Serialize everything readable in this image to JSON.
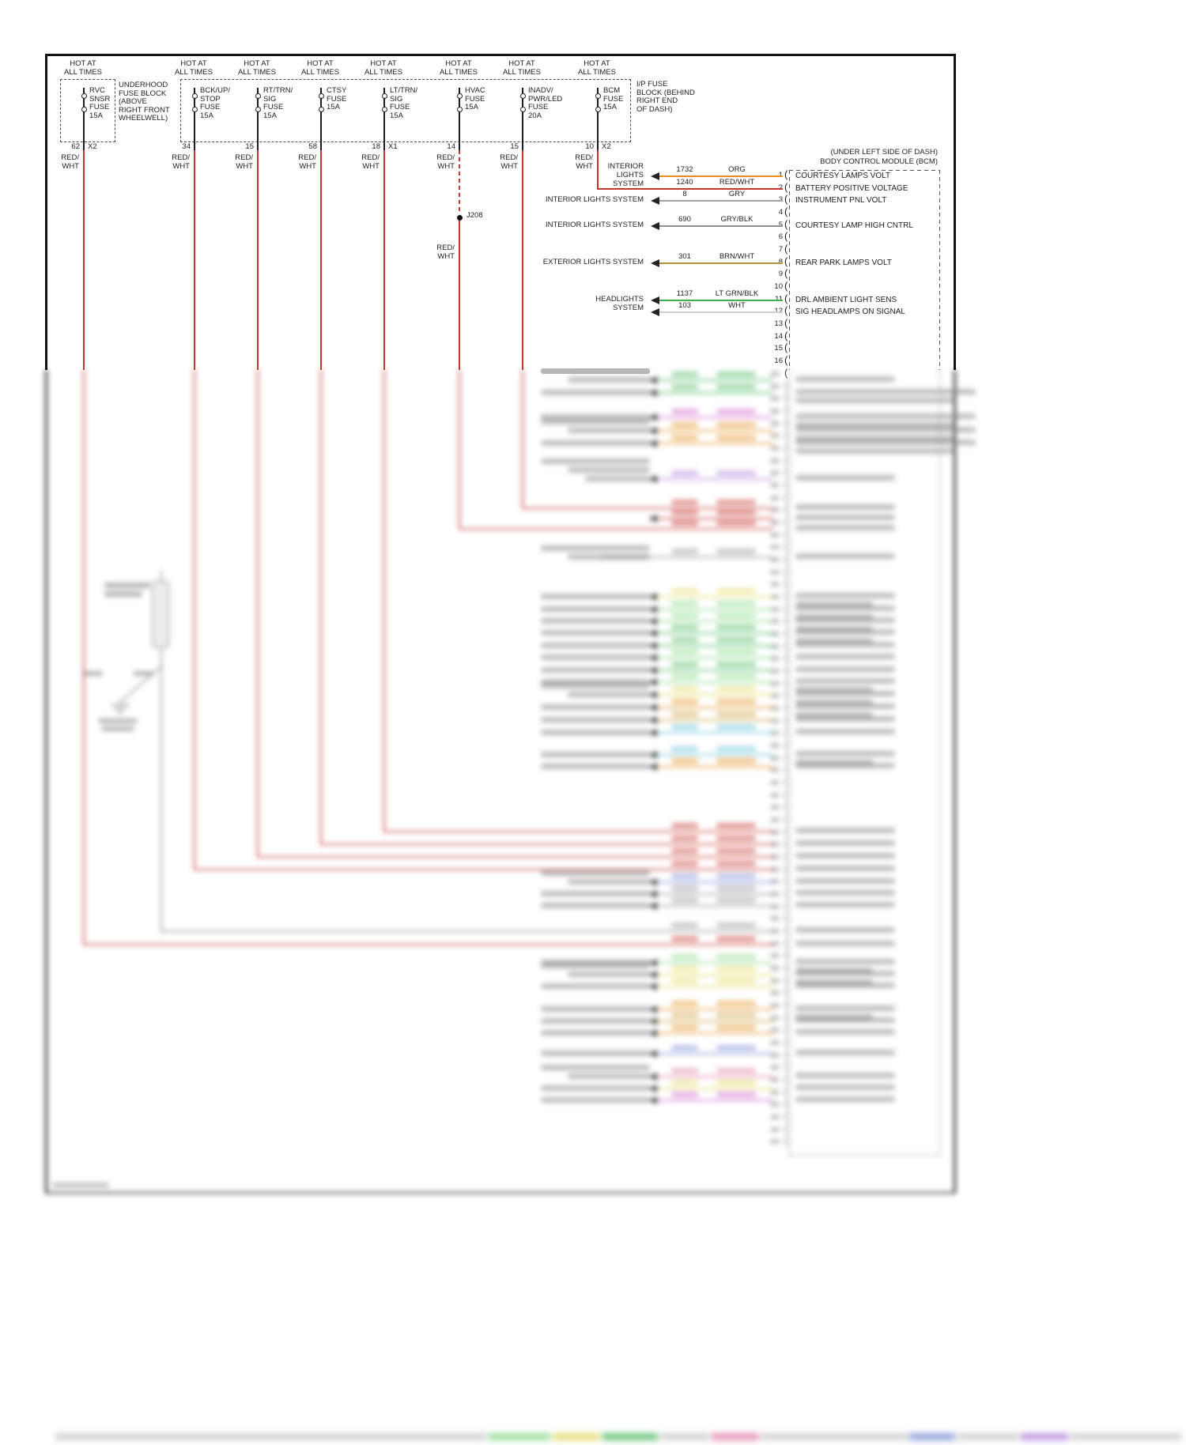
{
  "meta": {
    "note": "Automotive power-distribution wiring schematic; lower portion is blurred in the source image"
  },
  "hot_label": [
    "HOT AT",
    "ALL TIMES"
  ],
  "underhood_block_label": [
    "UNDERHOOD",
    "FUSE BLOCK",
    "(ABOVE",
    "RIGHT FRONT",
    "WHEELWELL)"
  ],
  "ip_block_label": [
    "I/P FUSE",
    "BLOCK (BEHIND",
    "RIGHT END",
    "OF DASH)"
  ],
  "wire_label_red": [
    "RED/",
    "WHT"
  ],
  "junction": "J208",
  "wire_color_red": "#c4352c",
  "fuses": [
    {
      "name_lines": [
        "RVC",
        "SNSR",
        "FUSE",
        "15A"
      ],
      "pin": "62",
      "conn": "X2"
    },
    {
      "name_lines": [
        "BCK/UP/",
        "STOP",
        "FUSE",
        "15A"
      ],
      "pin": "34",
      "conn": ""
    },
    {
      "name_lines": [
        "RT/TRN/",
        "SIG",
        "FUSE",
        "15A"
      ],
      "pin": "15",
      "conn": ""
    },
    {
      "name_lines": [
        "CTSY",
        "FUSE",
        "15A"
      ],
      "pin": "58",
      "conn": ""
    },
    {
      "name_lines": [
        "LT/TRN/",
        "SIG",
        "FUSE",
        "15A"
      ],
      "pin": "18",
      "conn": "X1"
    },
    {
      "name_lines": [
        "HVAC",
        "FUSE",
        "15A"
      ],
      "pin": "14",
      "conn": ""
    },
    {
      "name_lines": [
        "INADV/",
        "PWR/LED",
        "FUSE",
        "20A"
      ],
      "pin": "15",
      "conn": ""
    },
    {
      "name_lines": [
        "BCM",
        "FUSE",
        "15A"
      ],
      "pin": "10",
      "conn": "X2"
    }
  ],
  "bcm": {
    "location": "(UNDER LEFT SIDE OF DASH)",
    "title": "BODY CONTROL MODULE (BCM)",
    "pins": [
      {
        "n": "1",
        "circuit": "1732",
        "wire": "ORG",
        "color": "#e78c1d",
        "label": "COURTESY LAMPS VOLT",
        "src": [
          "INTERIOR",
          "LIGHTS",
          "SYSTEM"
        ],
        "arrow": true
      },
      {
        "n": "2",
        "circuit": "1240",
        "wire": "RED/WHT",
        "color": "#c4352c",
        "label": "BATTERY POSITIVE VOLTAGE",
        "from_fuse": 7
      },
      {
        "n": "3",
        "circuit": "8",
        "wire": "GRY",
        "color": "#a3a3a3",
        "label": "INSTRUMENT PNL VOLT",
        "src": [
          "INTERIOR LIGHTS SYSTEM"
        ],
        "arrow": true
      },
      {
        "n": "4"
      },
      {
        "n": "5",
        "circuit": "690",
        "wire": "GRY/BLK",
        "color": "#8e8e8e",
        "label": "COURTESY LAMP HIGH CNTRL",
        "src": [
          "INTERIOR LIGHTS SYSTEM"
        ],
        "arrow": true
      },
      {
        "n": "6"
      },
      {
        "n": "7"
      },
      {
        "n": "8",
        "circuit": "301",
        "wire": "BRN/WHT",
        "color": "#b3903c",
        "label": "REAR PARK LAMPS VOLT",
        "src": [
          "EXTERIOR LIGHTS SYSTEM"
        ],
        "arrow": true
      },
      {
        "n": "9"
      },
      {
        "n": "10"
      },
      {
        "n": "11",
        "circuit": "1137",
        "wire": "LT GRN/BLK",
        "color": "#44ad4f",
        "label": "DRL AMBIENT LIGHT SENS",
        "src": [
          "HEADLIGHTS",
          "SYSTEM"
        ],
        "src_span2": true,
        "arrow": true
      },
      {
        "n": "12",
        "circuit": "103",
        "wire": "WHT",
        "color": "#cfcfcf",
        "label": "SIG HEADLAMPS ON SIGNAL",
        "arrow": true
      },
      {
        "n": "13"
      },
      {
        "n": "14"
      },
      {
        "n": "15"
      },
      {
        "n": "16"
      }
    ]
  },
  "blurred_section": {
    "note": "Content below this line is illegible (blurred) in the source; only wire colors and layout are represented",
    "palette": {
      "g": "#58bd6c",
      "lg": "#8eda90",
      "y": "#e5dc6e",
      "o": "#e69a31",
      "t": "#cda74e",
      "c": "#6ec7d8",
      "p": "#e285ae",
      "m": "#d36fd0",
      "r": "#cc4a42",
      "b": "#8595d8",
      "v": "#b688dc",
      "gy": "#9c9c9c",
      "w2": "#cccccc"
    },
    "rows": [
      [
        481,
        "g",
        830,
        2,
        1,
        0
      ],
      [
        497,
        "g",
        830,
        1,
        2,
        1
      ],
      [
        528,
        "m",
        830,
        1,
        2,
        1
      ],
      [
        545,
        "o",
        830,
        2,
        2,
        1
      ],
      [
        561,
        "o",
        830,
        1,
        2,
        1
      ],
      [
        606,
        "v",
        830,
        3,
        1,
        0
      ],
      [
        643,
        "r",
        660,
        0,
        1,
        0
      ],
      [
        656,
        "r",
        830,
        0,
        1,
        0
      ],
      [
        669,
        "r",
        580,
        0,
        1,
        0
      ],
      [
        705,
        "gy",
        760,
        2,
        1,
        0
      ],
      [
        755,
        "y",
        830,
        1,
        2,
        0
      ],
      [
        771,
        "lg",
        830,
        1,
        2,
        0
      ],
      [
        786,
        "lg",
        830,
        1,
        2,
        0
      ],
      [
        801,
        "g",
        830,
        1,
        2,
        0
      ],
      [
        817,
        "g",
        830,
        1,
        1,
        0
      ],
      [
        832,
        "lg",
        830,
        1,
        1,
        0
      ],
      [
        848,
        "g",
        830,
        1,
        1,
        0
      ],
      [
        863,
        "lg",
        830,
        1,
        2,
        0
      ],
      [
        879,
        "y",
        830,
        2,
        2,
        0
      ],
      [
        895,
        "o",
        830,
        1,
        2,
        0
      ],
      [
        911,
        "t",
        830,
        1,
        1,
        0
      ],
      [
        927,
        "c",
        830,
        1,
        1,
        0
      ],
      [
        955,
        "c",
        830,
        1,
        2,
        0
      ],
      [
        970,
        "o",
        830,
        1,
        1,
        0
      ],
      [
        1052,
        "r",
        485,
        0,
        1,
        0
      ],
      [
        1068,
        "r",
        405,
        0,
        1,
        0
      ],
      [
        1084,
        "r",
        325,
        0,
        1,
        0
      ],
      [
        1100,
        "r",
        245,
        0,
        1,
        0
      ],
      [
        1116,
        "b",
        830,
        2,
        1,
        0
      ],
      [
        1131,
        "gy",
        830,
        1,
        1,
        0
      ],
      [
        1146,
        "gy",
        830,
        1,
        1,
        0
      ],
      [
        1178,
        "gy",
        202,
        0,
        1,
        0
      ],
      [
        1195,
        "r",
        105,
        0,
        1,
        0
      ],
      [
        1218,
        "lg",
        830,
        1,
        2,
        0
      ],
      [
        1233,
        "y",
        830,
        2,
        2,
        0
      ],
      [
        1248,
        "y",
        830,
        1,
        1,
        0
      ],
      [
        1277,
        "o",
        830,
        1,
        2,
        0
      ],
      [
        1292,
        "t",
        830,
        1,
        1,
        0
      ],
      [
        1307,
        "o",
        830,
        1,
        1,
        0
      ],
      [
        1333,
        "b",
        830,
        1,
        1,
        0
      ],
      [
        1362,
        "p",
        830,
        2,
        1,
        0
      ],
      [
        1377,
        "y",
        830,
        1,
        1,
        0
      ],
      [
        1392,
        "m",
        830,
        1,
        1,
        0
      ]
    ],
    "bottom_strip": [
      [
        70,
        545,
        "w2"
      ],
      [
        618,
        78,
        "lg"
      ],
      [
        699,
        60,
        "y"
      ],
      [
        762,
        70,
        "g"
      ],
      [
        835,
        62,
        "w2"
      ],
      [
        900,
        60,
        "p"
      ],
      [
        963,
        185,
        "w2"
      ],
      [
        1150,
        58,
        "b"
      ],
      [
        1211,
        77,
        "w2"
      ],
      [
        1291,
        60,
        "v"
      ],
      [
        1354,
        140,
        "w2"
      ]
    ]
  }
}
